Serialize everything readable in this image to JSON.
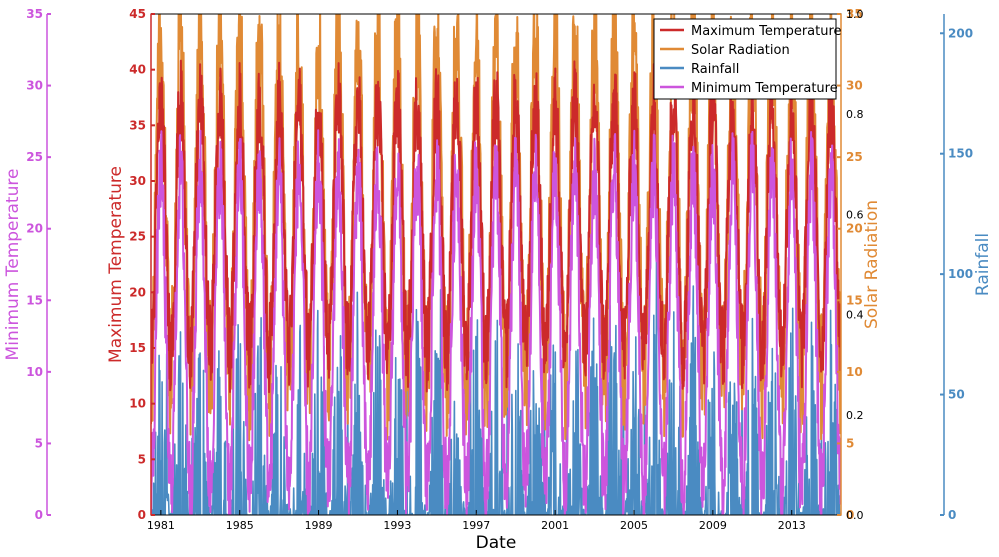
{
  "chart_data": {
    "type": "line",
    "xlabel": "Date",
    "x_ticks": [
      "1981",
      "1985",
      "1989",
      "1993",
      "1997",
      "2001",
      "2005",
      "2009",
      "2013"
    ],
    "xlim": [
      1980.5,
      2015.5
    ],
    "axes": [
      {
        "id": "tmin",
        "label": "Minimum Temperature",
        "color": "#CC55DD",
        "ylim": [
          0,
          35
        ],
        "ticks": [
          "0",
          "5",
          "10",
          "15",
          "20",
          "25",
          "30",
          "35"
        ]
      },
      {
        "id": "tmax",
        "label": "Maximum Temperature",
        "color": "#CC2A2A",
        "ylim": [
          0,
          45
        ],
        "ticks": [
          "0",
          "5",
          "10",
          "15",
          "20",
          "25",
          "30",
          "35",
          "40",
          "45"
        ]
      },
      {
        "id": "srad",
        "label": "Solar Radiation",
        "color": "#E08A35",
        "ylim": [
          0,
          35
        ],
        "ticks": [
          "0",
          "5",
          "10",
          "15",
          "20",
          "25",
          "30",
          "35"
        ]
      },
      {
        "id": "rain",
        "label": "Rainfall",
        "color": "#4A8BC2",
        "ylim": [
          0,
          208
        ],
        "ticks": [
          "0",
          "50",
          "100",
          "150",
          "200"
        ]
      }
    ],
    "aux_axis": {
      "ylim": [
        0,
        1.0
      ],
      "ticks": [
        "0.0",
        "0.2",
        "0.4",
        "0.6",
        "0.8",
        "1.0"
      ]
    },
    "legend": {
      "placement": "top-right",
      "entries": [
        "Maximum Temperature",
        "Solar Radiation",
        "Rainfall",
        "Minimum Temperature"
      ]
    },
    "series": [
      {
        "name": "Maximum Temperature",
        "axis": "tmax",
        "color": "#CC2A2A",
        "seasonal": {
          "summer_peak": 37,
          "winter_trough": 15,
          "noise": 4
        }
      },
      {
        "name": "Solar Radiation",
        "axis": "srad",
        "color": "#E08A35",
        "seasonal": {
          "summer_peak": 33,
          "winter_trough": 10,
          "noise": 5
        }
      },
      {
        "name": "Rainfall",
        "axis": "rain",
        "color": "#4A8BC2",
        "seasonal": {
          "summer_peak": 55,
          "winter_trough": 0,
          "noise": 25
        }
      },
      {
        "name": "Minimum Temperature",
        "axis": "tmin",
        "color": "#CC55DD",
        "seasonal": {
          "summer_peak": 24,
          "winter_trough": 2,
          "noise": 3
        }
      }
    ],
    "grid": false
  }
}
